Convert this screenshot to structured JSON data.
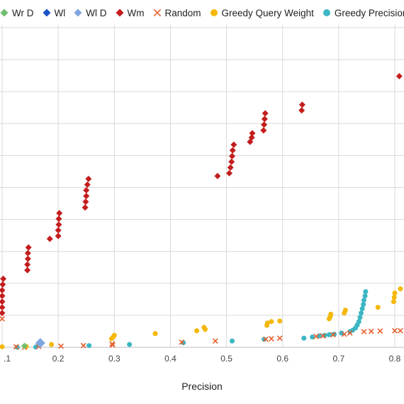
{
  "chart_data": {
    "type": "scatter",
    "title": "",
    "xlabel": "Precision",
    "ylabel": "",
    "xlim": [
      0.1,
      0.815
    ],
    "ylim": [
      0,
      1.13
    ],
    "grid": true,
    "legend_position": "top",
    "x_ticks": [
      ".1",
      "0.2",
      "0.3",
      "0.4",
      "0.5",
      "0.6",
      "0.7",
      "0.8"
    ],
    "x_tick_values": [
      0.1,
      0.2,
      0.3,
      0.4,
      0.5,
      0.6,
      0.7,
      0.8
    ],
    "series": [
      {
        "name": "Wr D",
        "marker": "diamond",
        "color": "#6fbf6f",
        "points": [
          [
            0.14,
            0.005
          ]
        ]
      },
      {
        "name": "Wl",
        "marker": "diamond",
        "color": "#1c52c6",
        "points": []
      },
      {
        "name": "Wl D",
        "marker": "diamond",
        "color": "#7fa6df",
        "points": [
          [
            0.168,
            0.015
          ]
        ]
      },
      {
        "name": "Wm",
        "marker": "diamond",
        "color": "#c41d1d",
        "points": [
          [
            0.1,
            0.12
          ],
          [
            0.1,
            0.14
          ],
          [
            0.1,
            0.16
          ],
          [
            0.1,
            0.18
          ],
          [
            0.1,
            0.2
          ],
          [
            0.101,
            0.22
          ],
          [
            0.102,
            0.24
          ],
          [
            0.145,
            0.27
          ],
          [
            0.145,
            0.29
          ],
          [
            0.146,
            0.31
          ],
          [
            0.146,
            0.33
          ],
          [
            0.147,
            0.35
          ],
          [
            0.185,
            0.38
          ],
          [
            0.2,
            0.39
          ],
          [
            0.2,
            0.41
          ],
          [
            0.201,
            0.43
          ],
          [
            0.201,
            0.45
          ],
          [
            0.202,
            0.47
          ],
          [
            0.248,
            0.49
          ],
          [
            0.249,
            0.51
          ],
          [
            0.25,
            0.53
          ],
          [
            0.25,
            0.55
          ],
          [
            0.252,
            0.57
          ],
          [
            0.254,
            0.59
          ],
          [
            0.484,
            0.6
          ],
          [
            0.505,
            0.61
          ],
          [
            0.507,
            0.63
          ],
          [
            0.509,
            0.65
          ],
          [
            0.51,
            0.67
          ],
          [
            0.511,
            0.69
          ],
          [
            0.513,
            0.71
          ],
          [
            0.542,
            0.72
          ],
          [
            0.545,
            0.735
          ],
          [
            0.546,
            0.75
          ],
          [
            0.566,
            0.76
          ],
          [
            0.567,
            0.78
          ],
          [
            0.568,
            0.8
          ],
          [
            0.569,
            0.82
          ],
          [
            0.634,
            0.83
          ],
          [
            0.635,
            0.85
          ],
          [
            0.808,
            0.95
          ]
        ]
      },
      {
        "name": "Random",
        "marker": "x",
        "color": "#e8602c",
        "points": [
          [
            0.1,
            0.1
          ],
          [
            0.125,
            0.002
          ],
          [
            0.14,
            0.0
          ],
          [
            0.165,
            0.003
          ],
          [
            0.205,
            0.004
          ],
          [
            0.245,
            0.006
          ],
          [
            0.296,
            0.012
          ],
          [
            0.297,
            0.008
          ],
          [
            0.42,
            0.018
          ],
          [
            0.48,
            0.022
          ],
          [
            0.57,
            0.028
          ],
          [
            0.58,
            0.03
          ],
          [
            0.595,
            0.032
          ],
          [
            0.66,
            0.038
          ],
          [
            0.672,
            0.04
          ],
          [
            0.69,
            0.044
          ],
          [
            0.71,
            0.046
          ],
          [
            0.72,
            0.05
          ],
          [
            0.745,
            0.055
          ],
          [
            0.758,
            0.056
          ],
          [
            0.774,
            0.057
          ],
          [
            0.8,
            0.058
          ],
          [
            0.81,
            0.058
          ]
        ]
      },
      {
        "name": "Greedy Query Weight",
        "marker": "circle",
        "color": "#f5b80b",
        "points": [
          [
            0.1,
            0.002
          ],
          [
            0.143,
            0.003
          ],
          [
            0.188,
            0.01
          ],
          [
            0.295,
            0.03
          ],
          [
            0.298,
            0.036
          ],
          [
            0.3,
            0.042
          ],
          [
            0.373,
            0.048
          ],
          [
            0.447,
            0.058
          ],
          [
            0.462,
            0.063
          ],
          [
            0.46,
            0.07
          ],
          [
            0.572,
            0.077
          ],
          [
            0.573,
            0.085
          ],
          [
            0.58,
            0.09
          ],
          [
            0.595,
            0.092
          ],
          [
            0.683,
            0.1
          ],
          [
            0.685,
            0.108
          ],
          [
            0.686,
            0.116
          ],
          [
            0.71,
            0.12
          ],
          [
            0.712,
            0.13
          ],
          [
            0.77,
            0.14
          ],
          [
            0.798,
            0.16
          ],
          [
            0.799,
            0.175
          ],
          [
            0.8,
            0.19
          ],
          [
            0.81,
            0.205
          ]
        ]
      },
      {
        "name": "Greedy Precision",
        "marker": "circle",
        "color": "#3cb6c4",
        "points": [
          [
            0.127,
            0.0
          ],
          [
            0.16,
            0.001
          ],
          [
            0.255,
            0.006
          ],
          [
            0.327,
            0.01
          ],
          [
            0.423,
            0.016
          ],
          [
            0.51,
            0.022
          ],
          [
            0.567,
            0.028
          ],
          [
            0.638,
            0.032
          ],
          [
            0.653,
            0.036
          ],
          [
            0.665,
            0.04
          ],
          [
            0.675,
            0.042
          ],
          [
            0.683,
            0.044
          ],
          [
            0.692,
            0.046
          ],
          [
            0.705,
            0.05
          ],
          [
            0.72,
            0.055
          ],
          [
            0.725,
            0.06
          ],
          [
            0.73,
            0.068
          ],
          [
            0.733,
            0.078
          ],
          [
            0.736,
            0.09
          ],
          [
            0.738,
            0.105
          ],
          [
            0.74,
            0.12
          ],
          [
            0.742,
            0.135
          ],
          [
            0.744,
            0.15
          ],
          [
            0.745,
            0.165
          ],
          [
            0.747,
            0.18
          ],
          [
            0.748,
            0.195
          ]
        ]
      }
    ]
  }
}
